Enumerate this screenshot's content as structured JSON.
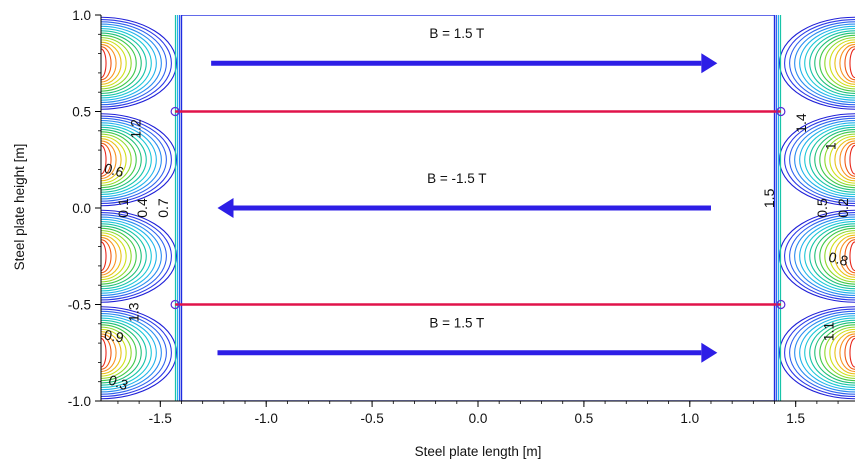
{
  "chart_data": {
    "type": "contour",
    "title": "",
    "xlabel": "Steel plate length [m]",
    "ylabel": "Steel plate height [m]",
    "xlim": [
      -1.78,
      1.78
    ],
    "ylim": [
      -1.0,
      1.0
    ],
    "x_ticks": [
      {
        "value": -1.5,
        "label": "-1.5"
      },
      {
        "value": -1.0,
        "label": "-1.0"
      },
      {
        "value": -0.5,
        "label": "-0.5"
      },
      {
        "value": 0.0,
        "label": "0.0"
      },
      {
        "value": 0.5,
        "label": "0.5"
      },
      {
        "value": 1.0,
        "label": "1.0"
      },
      {
        "value": 1.5,
        "label": "1.5"
      }
    ],
    "y_ticks": [
      {
        "value": 1.0,
        "label": "1.0"
      },
      {
        "value": 0.5,
        "label": "0.5"
      },
      {
        "value": 0.0,
        "label": "0.0"
      },
      {
        "value": -0.5,
        "label": "-0.5"
      },
      {
        "value": -1.0,
        "label": "-1.0"
      }
    ],
    "gap_lines": [
      {
        "y": 0.5,
        "x_from": -1.43,
        "x_to": 1.43,
        "color": "#e0134a"
      },
      {
        "y": -0.5,
        "x_from": -1.43,
        "x_to": 1.43,
        "color": "#e0134a"
      }
    ],
    "uniform_region": {
      "x_from": -1.4,
      "x_to": 1.4,
      "y_from": -1.0,
      "y_to": 1.0,
      "color": "#1e2be0"
    },
    "field_arrows": [
      {
        "label": "B = 1.5 T",
        "y": 0.75,
        "x_from": -1.26,
        "x_to": 1.13,
        "label_x": -0.1,
        "label_y": 0.88,
        "color": "#2d1ee6"
      },
      {
        "label": "B = -1.5 T",
        "y": 0.0,
        "x_from": 1.1,
        "x_to": -1.23,
        "label_x": -0.1,
        "label_y": 0.13,
        "color": "#2d1ee6"
      },
      {
        "label": "B = 1.5 T",
        "y": -0.75,
        "x_from": -1.23,
        "x_to": 1.13,
        "label_x": -0.1,
        "label_y": -0.62,
        "color": "#2d1ee6"
      }
    ],
    "contour_labels": [
      {
        "text": "1.2",
        "x": -1.61,
        "y": 0.41,
        "angle": -90
      },
      {
        "text": "0.6",
        "x": -1.72,
        "y": 0.19,
        "angle": 15
      },
      {
        "text": "0.1",
        "x": -1.67,
        "y": 0.0,
        "angle": -90
      },
      {
        "text": "0.4",
        "x": -1.58,
        "y": 0.0,
        "angle": -90
      },
      {
        "text": "0.7",
        "x": -1.48,
        "y": 0.0,
        "angle": -90
      },
      {
        "text": "1.3",
        "x": -1.62,
        "y": -0.54,
        "angle": -90
      },
      {
        "text": "0.9",
        "x": -1.72,
        "y": -0.67,
        "angle": 10
      },
      {
        "text": "0.3",
        "x": -1.7,
        "y": -0.91,
        "angle": 20
      },
      {
        "text": "1.4",
        "x": 1.53,
        "y": 0.44,
        "angle": -90
      },
      {
        "text": "1",
        "x": 1.67,
        "y": 0.32,
        "angle": -90
      },
      {
        "text": "1.5",
        "x": 1.38,
        "y": 0.05,
        "angle": -90
      },
      {
        "text": "0.5",
        "x": 1.63,
        "y": 0.0,
        "angle": -90
      },
      {
        "text": "0.2",
        "x": 1.73,
        "y": 0.0,
        "angle": -90
      },
      {
        "text": "0.8",
        "x": 1.7,
        "y": -0.27,
        "angle": 15
      },
      {
        "text": "1.1",
        "x": 1.66,
        "y": -0.64,
        "angle": -90
      }
    ],
    "contour_levels": [
      0.1,
      0.2,
      0.3,
      0.4,
      0.5,
      0.6,
      0.7,
      0.8,
      0.9,
      1.0,
      1.1,
      1.2,
      1.3,
      1.4,
      1.5
    ],
    "colors": {
      "rainbow": [
        "#e8261a",
        "#f05a10",
        "#f7931e",
        "#e9c016",
        "#cfe01a",
        "#8ed82a",
        "#3fc84a",
        "#1ebf77",
        "#18c4a8",
        "#1cc7d6",
        "#22b3ea",
        "#2a8cf0",
        "#2f63ee",
        "#2d3be8",
        "#2020d8"
      ]
    },
    "grid": false,
    "legend": "none"
  }
}
